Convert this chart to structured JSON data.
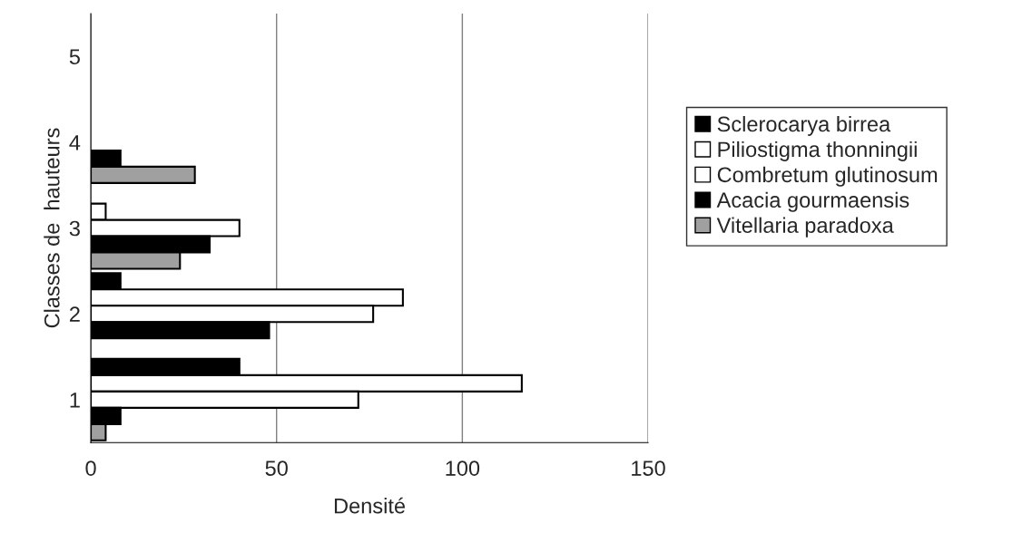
{
  "chart_data": {
    "type": "bar",
    "orientation": "horizontal",
    "xlabel": "Densité",
    "ylabel": "Classes de  hauteurs",
    "categories": [
      "5",
      "4",
      "3",
      "2",
      "1"
    ],
    "series": [
      {
        "name": "Sclerocarya birrea",
        "color": "#000000",
        "values": [
          null,
          null,
          null,
          8,
          40
        ]
      },
      {
        "name": "Piliostigma thonningii",
        "color": "#ffffff",
        "values": [
          null,
          null,
          4,
          84,
          116
        ]
      },
      {
        "name": "Combretum glutinosum",
        "color": "#ffffff",
        "values": [
          null,
          null,
          40,
          76,
          72
        ]
      },
      {
        "name": "Acacia gourmaensis",
        "color": "#000000",
        "values": [
          null,
          8,
          32,
          48,
          8
        ]
      },
      {
        "name": "Vitellaria paradoxa",
        "color": "#a0a0a0",
        "values": [
          null,
          28,
          24,
          null,
          4
        ]
      }
    ],
    "xlim": [
      0,
      150
    ],
    "xticks": [
      0,
      50,
      100,
      150
    ],
    "grid": "x",
    "legend": "right"
  }
}
